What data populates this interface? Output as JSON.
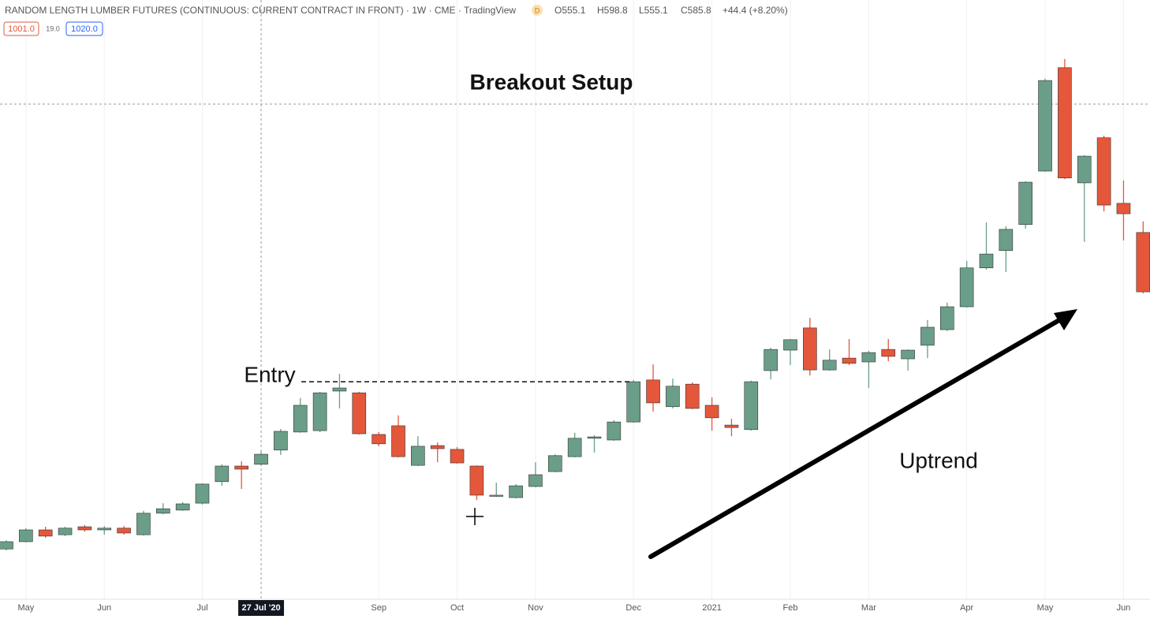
{
  "header": {
    "badge": "D",
    "ohlc": [
      "O555.1",
      "H598.8",
      "L555.1",
      "C585.8",
      "+44.4 (+8.20%)"
    ],
    "buttons": [
      "1001.0",
      "19.0",
      "1020.0"
    ]
  },
  "chart_data": {
    "type": "candlestick",
    "title": "RANDOM LENGTH LUMBER FUTURES (CONTINUOUS: CURRENT CONTRACT IN FRONT) · 1W · CME · TradingView",
    "annotations": [
      "Breakout Setup",
      "Entry",
      "Uptrend"
    ],
    "categories": [
      null,
      "May",
      null,
      null,
      null,
      "Jun",
      null,
      null,
      null,
      null,
      "Jul",
      null,
      null,
      "27 Jul '20",
      null,
      null,
      null,
      null,
      null,
      "Sep",
      null,
      null,
      null,
      "Oct",
      null,
      null,
      null,
      "Nov",
      null,
      null,
      null,
      null,
      "Dec",
      null,
      null,
      null,
      "2021",
      null,
      null,
      null,
      "Feb",
      null,
      null,
      null,
      "Mar",
      null,
      null,
      null,
      null,
      "Apr",
      null,
      null,
      null,
      "May",
      null,
      null,
      null,
      "Jun",
      null
    ],
    "highlight_category": 13,
    "up_color": "#6a9e88",
    "down_color": "#e4573a",
    "ylim": [
      125,
      1852
    ],
    "x_grid": true,
    "open": [
      270,
      291,
      325,
      311,
      334,
      325,
      330,
      311,
      373,
      382,
      402,
      464,
      509,
      514,
      555,
      607,
      611,
      725,
      720,
      600,
      625,
      511,
      568,
      557,
      509,
      423,
      418,
      450,
      493,
      536,
      589,
      584,
      636,
      757,
      680,
      745,
      684,
      627,
      614,
      784,
      843,
      907,
      786,
      820,
      809,
      845,
      818,
      857,
      902,
      968,
      1080,
      1130,
      1205,
      1359,
      1657,
      1325,
      1455,
      1266,
      1182
    ],
    "high": [
      295,
      330,
      334,
      334,
      339,
      336,
      336,
      380,
      402,
      405,
      459,
      514,
      523,
      550,
      616,
      705,
      723,
      775,
      723,
      607,
      655,
      595,
      577,
      564,
      511,
      461,
      457,
      520,
      543,
      605,
      598,
      641,
      757,
      802,
      761,
      750,
      707,
      645,
      755,
      850,
      875,
      936,
      845,
      875,
      841,
      875,
      845,
      930,
      980,
      1100,
      1211,
      1200,
      1330,
      1625,
      1682,
      1405,
      1461,
      1332,
      1214
    ],
    "low": [
      266,
      289,
      302,
      307,
      320,
      311,
      311,
      309,
      370,
      380,
      398,
      452,
      443,
      511,
      541,
      605,
      607,
      675,
      600,
      566,
      534,
      509,
      520,
      516,
      411,
      420,
      416,
      448,
      491,
      534,
      548,
      582,
      634,
      666,
      675,
      673,
      611,
      595,
      611,
      759,
      800,
      770,
      784,
      800,
      734,
      811,
      784,
      820,
      898,
      966,
      1075,
      1068,
      1193,
      1357,
      1336,
      1155,
      1243,
      1159,
      1007
    ],
    "close": [
      291,
      325,
      307,
      330,
      325,
      330,
      316,
      373,
      386,
      400,
      457,
      509,
      500,
      543,
      609,
      684,
      720,
      734,
      602,
      573,
      536,
      566,
      559,
      518,
      425,
      425,
      452,
      484,
      539,
      589,
      593,
      636,
      752,
      691,
      739,
      675,
      648,
      620,
      752,
      845,
      873,
      786,
      814,
      805,
      836,
      825,
      843,
      909,
      968,
      1080,
      1120,
      1191,
      1327,
      1620,
      1339,
      1402,
      1261,
      1236,
      1011
    ]
  }
}
